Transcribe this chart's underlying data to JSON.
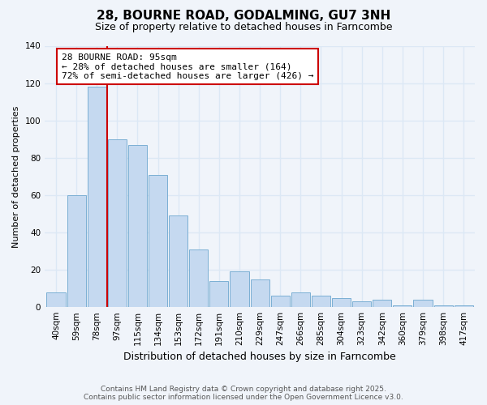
{
  "title": "28, BOURNE ROAD, GODALMING, GU7 3NH",
  "subtitle": "Size of property relative to detached houses in Farncombe",
  "xlabel": "Distribution of detached houses by size in Farncombe",
  "ylabel": "Number of detached properties",
  "categories": [
    "40sqm",
    "59sqm",
    "78sqm",
    "97sqm",
    "115sqm",
    "134sqm",
    "153sqm",
    "172sqm",
    "191sqm",
    "210sqm",
    "229sqm",
    "247sqm",
    "266sqm",
    "285sqm",
    "304sqm",
    "323sqm",
    "342sqm",
    "360sqm",
    "379sqm",
    "398sqm",
    "417sqm"
  ],
  "values": [
    8,
    60,
    118,
    90,
    87,
    71,
    49,
    31,
    14,
    19,
    15,
    6,
    8,
    6,
    5,
    3,
    4,
    1,
    4,
    1,
    1
  ],
  "bar_color": "#c5d9f0",
  "bar_edge_color": "#7bafd4",
  "vline_x_index": 3,
  "vline_color": "#cc0000",
  "annotation_title": "28 BOURNE ROAD: 95sqm",
  "annotation_line1": "← 28% of detached houses are smaller (164)",
  "annotation_line2": "72% of semi-detached houses are larger (426) →",
  "annotation_box_color": "#ffffff",
  "annotation_box_edge": "#cc0000",
  "ylim": [
    0,
    140
  ],
  "yticks": [
    0,
    20,
    40,
    60,
    80,
    100,
    120,
    140
  ],
  "footer1": "Contains HM Land Registry data © Crown copyright and database right 2025.",
  "footer2": "Contains public sector information licensed under the Open Government Licence v3.0.",
  "bg_color": "#f0f4fa",
  "grid_color": "#dce8f5",
  "title_fontsize": 11,
  "subtitle_fontsize": 9,
  "xlabel_fontsize": 9,
  "ylabel_fontsize": 8,
  "tick_fontsize": 7.5,
  "footer_fontsize": 6.5
}
